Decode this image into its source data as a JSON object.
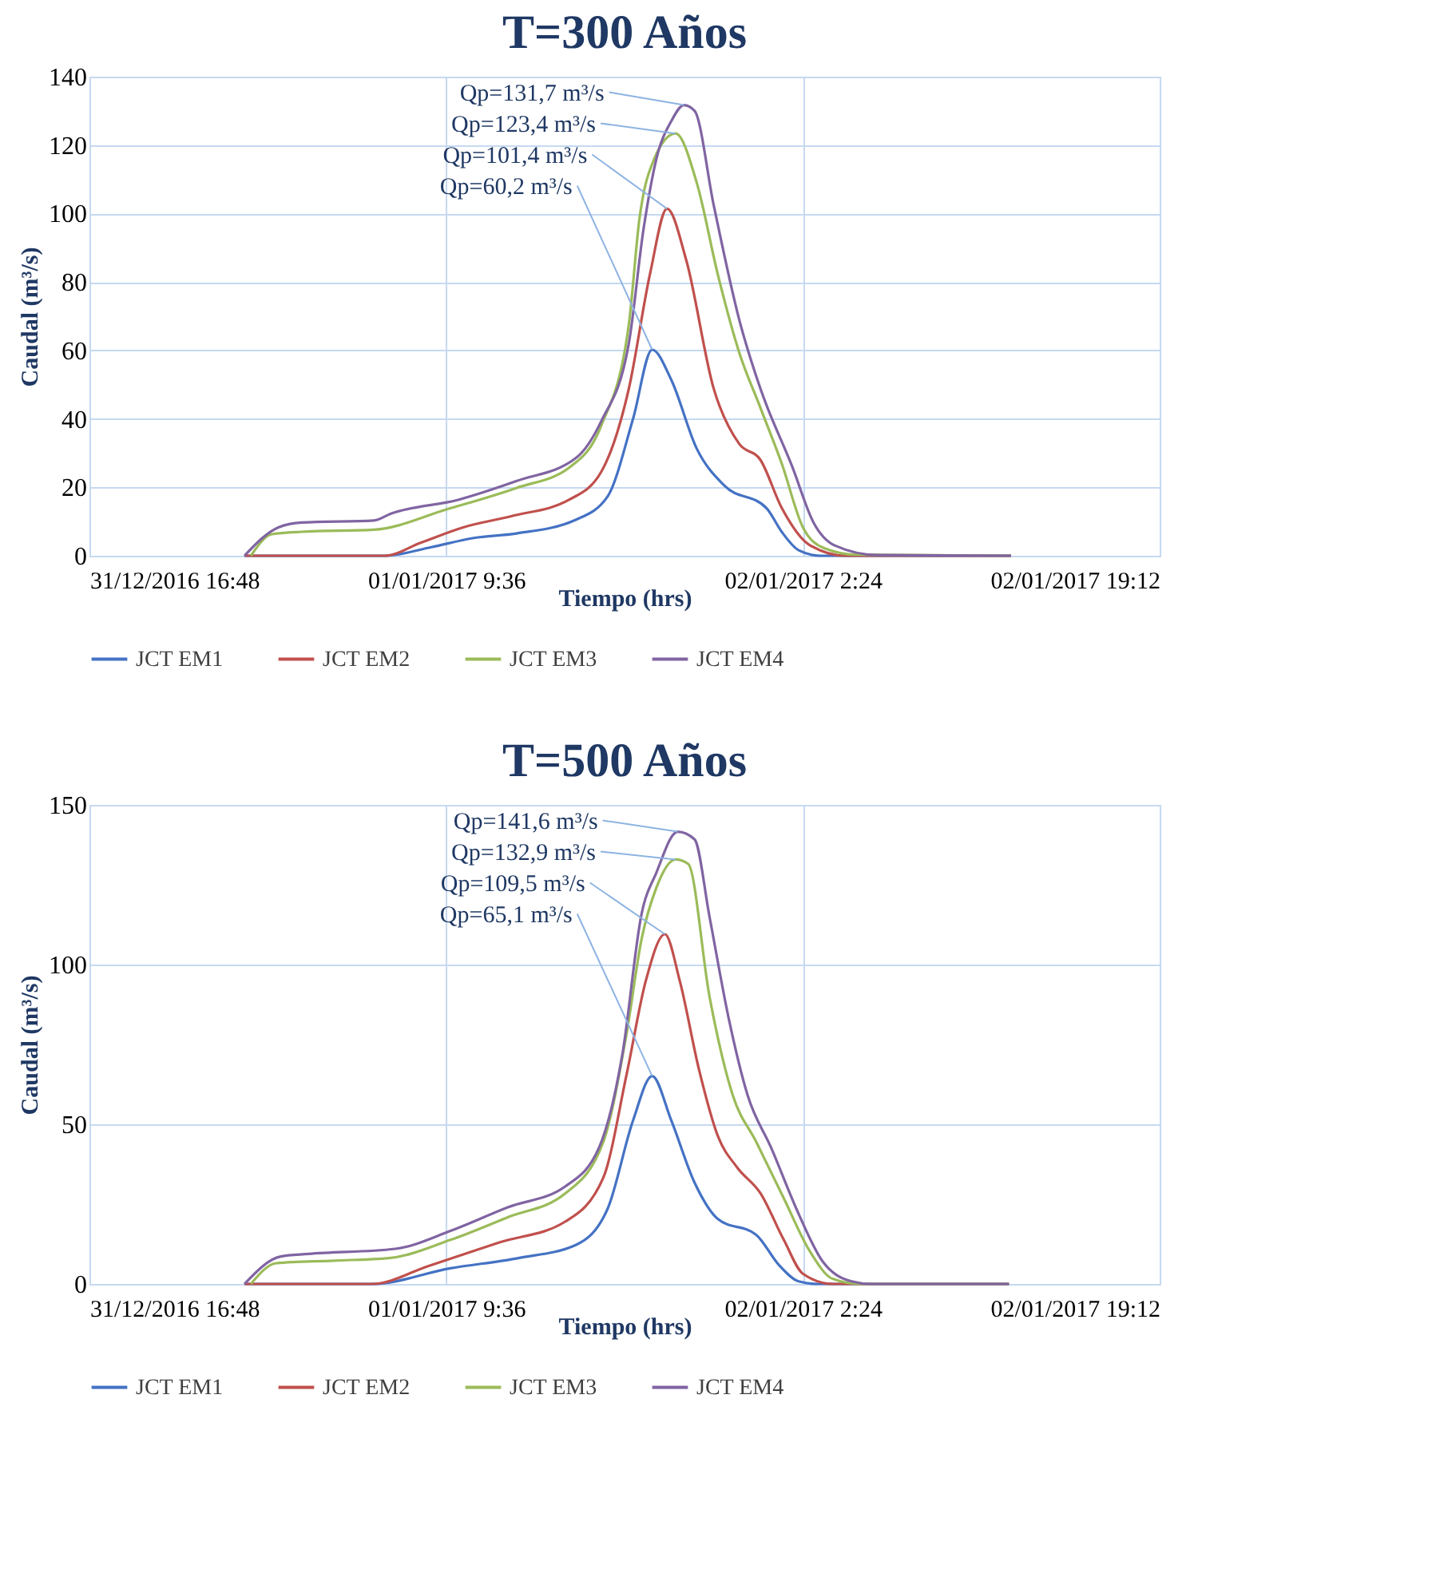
{
  "chart_data": [
    {
      "type": "line",
      "title": "T=300 Años",
      "xlabel": "Tiempo (hrs)",
      "ylabel": "Caudal (m³/s)",
      "xlim": [
        "2016-12-31T16:48",
        "2017-01-02T19:12"
      ],
      "xticks": [
        {
          "value": "2016-12-31T16:48",
          "label": "31/12/2016 16:48"
        },
        {
          "value": "2017-01-01T09:36",
          "label": "01/01/2017 9:36"
        },
        {
          "value": "2017-01-02T02:24",
          "label": "02/01/2017 2:24"
        },
        {
          "value": "2017-01-02T19:12",
          "label": "02/01/2017 19:12"
        }
      ],
      "ylim": [
        0,
        140
      ],
      "yticks": [
        0,
        20,
        40,
        60,
        80,
        100,
        120,
        140
      ],
      "grid": true,
      "legend": "bottom",
      "line_style": "solid",
      "series": [
        {
          "name": "JCT EM1",
          "color": "#4472c4",
          "x": [
            "2017-01-01T00:06",
            "2017-01-01T06:42",
            "2017-01-01T08:54",
            "2017-01-01T10:54",
            "2017-01-01T12:54",
            "2017-01-01T15:42",
            "2017-01-01T17:12",
            "2017-01-01T18:24",
            "2017-01-01T19:18",
            "2017-01-01T20:12",
            "2017-01-01T21:24",
            "2017-01-01T22:42",
            "2017-01-02T00:42",
            "2017-01-02T01:24",
            "2017-01-02T02:12",
            "2017-01-02T03:12",
            "2017-01-02T12:12"
          ],
          "values": [
            0,
            0,
            2.5,
            5.2,
            6.5,
            10.5,
            17.3,
            40,
            60.2,
            51.4,
            31.3,
            20.5,
            13.8,
            7,
            1.6,
            0,
            0
          ]
        },
        {
          "name": "JCT EM2",
          "color": "#c0504d",
          "x": [
            "2017-01-01T00:06",
            "2017-01-01T06:42",
            "2017-01-01T08:24",
            "2017-01-01T10:24",
            "2017-01-01T12:42",
            "2017-01-01T15:24",
            "2017-01-01T16:54",
            "2017-01-01T18:12",
            "2017-01-01T19:12",
            "2017-01-01T20:00",
            "2017-01-01T20:54",
            "2017-01-01T22:12",
            "2017-01-01T23:24",
            "2017-01-02T00:24",
            "2017-01-02T01:24",
            "2017-01-02T02:42",
            "2017-01-02T04:24",
            "2017-01-02T12:12"
          ],
          "values": [
            0,
            0,
            3.8,
            8.3,
            11.6,
            16.4,
            24.5,
            48.8,
            82.4,
            101.4,
            86.5,
            48.8,
            32.7,
            28,
            14,
            3.2,
            0,
            0
          ]
        },
        {
          "name": "JCT EM3",
          "color": "#9bbb59",
          "x": [
            "2017-01-01T00:24",
            "2017-01-01T01:24",
            "2017-01-01T02:48",
            "2017-01-01T06:12",
            "2017-01-01T09:42",
            "2017-01-01T12:54",
            "2017-01-01T15:24",
            "2017-01-01T16:54",
            "2017-01-01T18:12",
            "2017-01-01T18:42",
            "2017-01-01T19:24",
            "2017-01-01T20:24",
            "2017-01-01T21:24",
            "2017-01-01T22:24",
            "2017-01-01T23:24",
            "2017-01-02T00:24",
            "2017-01-02T01:24",
            "2017-01-02T02:24",
            "2017-01-02T03:24",
            "2017-01-02T04:54",
            "2017-01-02T12:12"
          ],
          "values": [
            0,
            6.3,
            7.0,
            7.6,
            13.7,
            19.8,
            25.8,
            38,
            67.5,
            98.4,
            116,
            123.4,
            109,
            82,
            59.4,
            43.2,
            27,
            8.3,
            2.2,
            0.3,
            0
          ]
        },
        {
          "name": "JCT EM4",
          "color": "#8064a2",
          "x": [
            "2017-01-01T00:06",
            "2017-01-01T01:42",
            "2017-01-01T02:48",
            "2017-01-01T06:12",
            "2017-01-01T07:00",
            "2017-01-01T10:12",
            "2017-01-01T12:54",
            "2017-01-01T15:42",
            "2017-01-01T16:54",
            "2017-01-01T18:12",
            "2017-01-01T18:54",
            "2017-01-01T19:30",
            "2017-01-01T20:12",
            "2017-01-01T20:48",
            "2017-01-01T21:18",
            "2017-01-01T22:12",
            "2017-01-01T23:24",
            "2017-01-02T00:24",
            "2017-01-02T01:54",
            "2017-01-02T02:54",
            "2017-01-02T03:54",
            "2017-01-02T05:54",
            "2017-01-02T12:12"
          ],
          "values": [
            0,
            8.3,
            9.7,
            10.3,
            12.3,
            16.4,
            21.8,
            28.5,
            39.3,
            62,
            95.7,
            116,
            127,
            131.7,
            130,
            102.4,
            69,
            48.8,
            26,
            9.7,
            3,
            0.2,
            0
          ]
        }
      ],
      "annotations": [
        {
          "text": "Qp=131,7 m³/s",
          "x": "2017-01-01T20:48",
          "y": 131.7
        },
        {
          "text": "Qp=123,4 m³/s",
          "x": "2017-01-01T20:24",
          "y": 123.4
        },
        {
          "text": "Qp=101,4 m³/s",
          "x": "2017-01-01T20:00",
          "y": 101.4
        },
        {
          "text": "Qp=60,2 m³/s",
          "x": "2017-01-01T19:18",
          "y": 60.2
        }
      ]
    },
    {
      "type": "line",
      "title": "T=500 Años",
      "xlabel": "Tiempo (hrs)",
      "ylabel": "Caudal (m³/s)",
      "xlim": [
        "2016-12-31T16:48",
        "2017-01-02T19:12"
      ],
      "xticks": [
        {
          "value": "2016-12-31T16:48",
          "label": "31/12/2016 16:48"
        },
        {
          "value": "2017-01-01T09:36",
          "label": "01/01/2017 9:36"
        },
        {
          "value": "2017-01-02T02:24",
          "label": "02/01/2017 2:24"
        },
        {
          "value": "2017-01-02T19:12",
          "label": "02/01/2017 19:12"
        }
      ],
      "ylim": [
        0,
        150
      ],
      "yticks": [
        0,
        50,
        100,
        150
      ],
      "grid": true,
      "legend": "bottom",
      "line_style": "solid",
      "series": [
        {
          "name": "JCT EM1",
          "color": "#4472c4",
          "x": [
            "2017-01-01T00:06",
            "2017-01-01T06:06",
            "2017-01-01T09:48",
            "2017-01-01T13:00",
            "2017-01-01T15:42",
            "2017-01-01T17:12",
            "2017-01-01T18:24",
            "2017-01-01T19:18",
            "2017-01-01T20:12",
            "2017-01-01T21:18",
            "2017-01-01T22:24",
            "2017-01-02T00:12",
            "2017-01-02T01:18",
            "2017-01-02T02:12",
            "2017-01-02T03:06",
            "2017-01-02T12:06"
          ],
          "values": [
            0,
            0,
            4.9,
            8.1,
            12.2,
            23.5,
            51.2,
            65.1,
            51.2,
            31.7,
            20.3,
            15.4,
            5.7,
            0.8,
            0,
            0
          ]
        },
        {
          "name": "JCT EM2",
          "color": "#c0504d",
          "x": [
            "2017-01-01T00:06",
            "2017-01-01T06:06",
            "2017-01-01T08:48",
            "2017-01-01T12:06",
            "2017-01-01T15:12",
            "2017-01-01T17:00",
            "2017-01-01T18:06",
            "2017-01-01T19:00",
            "2017-01-01T19:54",
            "2017-01-01T20:36",
            "2017-01-01T21:30",
            "2017-01-01T22:24",
            "2017-01-01T23:18",
            "2017-01-02T00:24",
            "2017-01-02T01:30",
            "2017-01-02T02:24",
            "2017-01-02T03:48",
            "2017-01-02T12:06"
          ],
          "values": [
            0,
            0,
            5.7,
            13,
            19.5,
            33.3,
            65.7,
            94.9,
            109.5,
            94.9,
            67.3,
            46.2,
            36.5,
            28.4,
            13.8,
            3.2,
            0,
            0
          ]
        },
        {
          "name": "JCT EM3",
          "color": "#9bbb59",
          "x": [
            "2017-01-01T00:24",
            "2017-01-01T01:36",
            "2017-01-01T04:18",
            "2017-01-01T06:54",
            "2017-01-01T09:48",
            "2017-01-01T12:30",
            "2017-01-01T15:12",
            "2017-01-01T17:00",
            "2017-01-01T18:06",
            "2017-01-01T18:48",
            "2017-01-01T19:30",
            "2017-01-01T20:24",
            "2017-01-01T21:00",
            "2017-01-01T22:00",
            "2017-01-01T23:06",
            "2017-01-02T00:12",
            "2017-01-02T01:30",
            "2017-01-02T02:42",
            "2017-01-02T03:48",
            "2017-01-02T05:06",
            "2017-01-02T12:06"
          ],
          "values": [
            0,
            6.5,
            7.3,
            8.1,
            13.8,
            20.9,
            28.3,
            44.5,
            78.6,
            107.9,
            124.1,
            132.9,
            131.5,
            90,
            59,
            44.5,
            26.8,
            10.5,
            1.6,
            0,
            0
          ]
        },
        {
          "name": "JCT EM4",
          "color": "#8064a2",
          "x": [
            "2017-01-01T00:06",
            "2017-01-01T01:48",
            "2017-01-01T03:06",
            "2017-01-01T07:12",
            "2017-01-01T09:48",
            "2017-01-01T12:30",
            "2017-01-01T15:12",
            "2017-01-01T16:48",
            "2017-01-01T17:54",
            "2017-01-01T18:48",
            "2017-01-01T19:30",
            "2017-01-01T20:30",
            "2017-01-01T21:18",
            "2017-01-01T22:00",
            "2017-01-01T22:54",
            "2017-01-01T23:48",
            "2017-01-02T00:54",
            "2017-01-02T02:12",
            "2017-01-02T03:18",
            "2017-01-02T04:42",
            "2017-01-02T05:36",
            "2017-01-02T12:06"
          ],
          "values": [
            0,
            8.6,
            9.4,
            11,
            16.6,
            24,
            30.5,
            42.7,
            72,
            115.8,
            128.8,
            141.6,
            139.2,
            115,
            83.3,
            59,
            42.7,
            21.9,
            7.3,
            0.8,
            0,
            0
          ]
        }
      ],
      "annotations": [
        {
          "text": "Qp=141,6 m³/s",
          "x": "2017-01-01T20:30",
          "y": 141.6
        },
        {
          "text": "Qp=132,9 m³/s",
          "x": "2017-01-01T20:24",
          "y": 132.9
        },
        {
          "text": "Qp=109,5 m³/s",
          "x": "2017-01-01T19:54",
          "y": 109.5
        },
        {
          "text": "Qp=65,1 m³/s",
          "x": "2017-01-01T19:18",
          "y": 65.1
        }
      ]
    }
  ]
}
